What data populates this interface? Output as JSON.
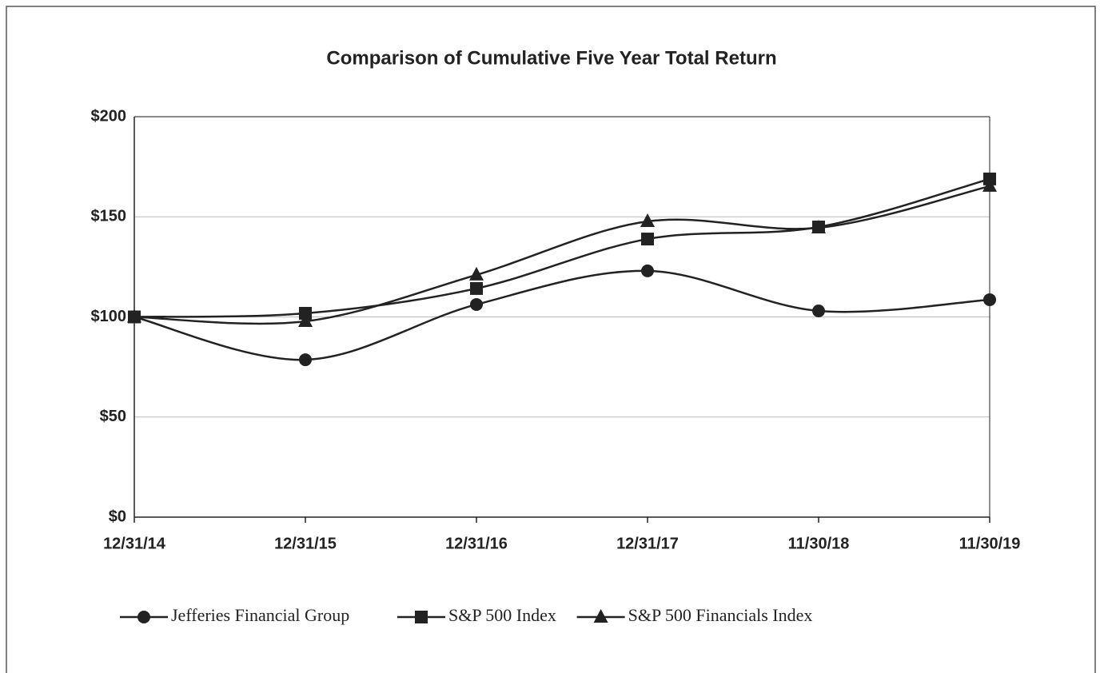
{
  "chart_data": {
    "type": "line",
    "title": "Comparison of Cumulative Five Year Total Return",
    "categories": [
      "12/31/14",
      "12/31/15",
      "12/31/16",
      "12/31/17",
      "11/30/18",
      "11/30/19"
    ],
    "series": [
      {
        "name": "Jefferies Financial Group",
        "color": "#222222",
        "marker": "circle",
        "values": [
          100,
          78.6,
          106.2,
          123,
          103,
          108.6
        ]
      },
      {
        "name": "S&P 500 Index",
        "color": "#222222",
        "marker": "square",
        "values": [
          100,
          101.8,
          114.2,
          138.9,
          144.9,
          168.9
        ]
      },
      {
        "name": "S&P 500 Financials Index",
        "color": "#222222",
        "marker": "triangle",
        "values": [
          100,
          97.8,
          121,
          147.7,
          144.5,
          165.3
        ]
      }
    ],
    "ylim": [
      0,
      200
    ],
    "yticks": [
      {
        "value": 0,
        "label": "$0"
      },
      {
        "value": 50,
        "label": "$50"
      },
      {
        "value": 100,
        "label": "$100"
      },
      {
        "value": 150,
        "label": "$150"
      },
      {
        "value": 200,
        "label": "$200"
      }
    ],
    "grid": true,
    "smooth": true,
    "legend": "bottom"
  }
}
